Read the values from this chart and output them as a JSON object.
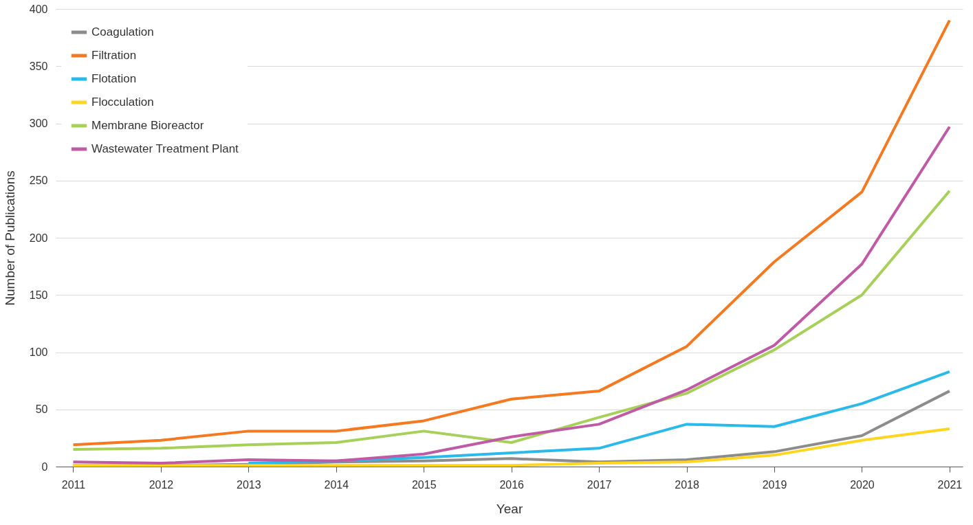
{
  "chart_data": {
    "type": "line",
    "xlabel": "Year",
    "ylabel": "Number of Publications",
    "categories": [
      "2011",
      "2012",
      "2013",
      "2014",
      "2015",
      "2016",
      "2017",
      "2018",
      "2019",
      "2020",
      "2021"
    ],
    "series": [
      {
        "name": "Coagulation",
        "color": "#8c8c8c",
        "values": [
          1,
          1,
          2,
          4,
          5,
          7,
          4,
          6,
          13,
          27,
          66
        ]
      },
      {
        "name": "Filtration",
        "color": "#f47920",
        "values": [
          19,
          23,
          31,
          31,
          40,
          59,
          66,
          105,
          179,
          240,
          390
        ]
      },
      {
        "name": "Flotation",
        "color": "#2bb9ea",
        "values": [
          null,
          null,
          3,
          5,
          8,
          12,
          16,
          37,
          35,
          55,
          83
        ]
      },
      {
        "name": "Flocculation",
        "color": "#ffd520",
        "values": [
          1,
          1,
          1,
          1,
          1,
          1,
          3,
          4,
          10,
          23,
          33
        ]
      },
      {
        "name": "Membrane Bioreactor",
        "color": "#a6d05a",
        "values": [
          15,
          16,
          19,
          21,
          31,
          21,
          43,
          64,
          102,
          150,
          241
        ]
      },
      {
        "name": "Wastewater Treatment Plant",
        "color": "#bf5aa5",
        "values": [
          4,
          3,
          6,
          5,
          11,
          26,
          37,
          67,
          106,
          177,
          297
        ]
      }
    ],
    "ylim": [
      0,
      400
    ],
    "yticks": [
      0,
      50,
      100,
      150,
      200,
      250,
      300,
      350,
      400
    ],
    "grid": "y",
    "legend": "top left",
    "marker": "none",
    "line_style": "solid"
  }
}
